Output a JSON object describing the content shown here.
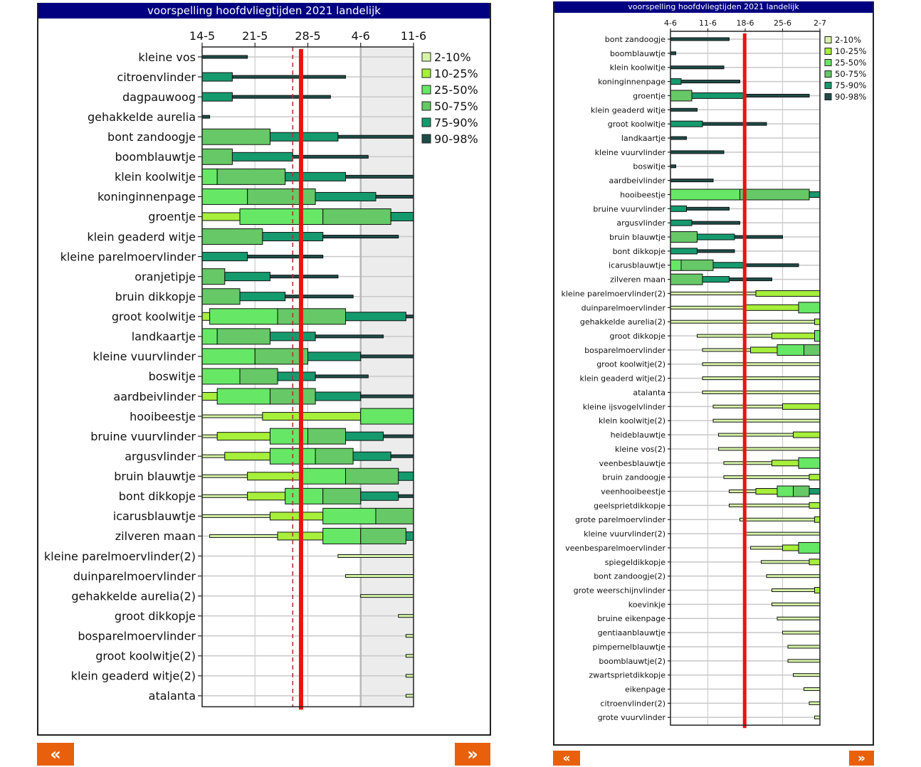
{
  "bands": [
    {
      "label": "2-10%",
      "color": "#d6f5a8"
    },
    {
      "label": "10-25%",
      "color": "#a6ef3a"
    },
    {
      "label": "25-50%",
      "color": "#66e866"
    },
    {
      "label": "50-75%",
      "color": "#66c866"
    },
    {
      "label": "75-90%",
      "color": "#159a6e"
    },
    {
      "label": "90-98%",
      "color": "#1e4d48"
    }
  ],
  "colors": {
    "title_bg": "#000080",
    "today_line": "#ee1111",
    "dashed_line": "#aa3333",
    "nav_button": "#e8600c",
    "shade": "#ececec"
  },
  "nav": {
    "prev_label": "«",
    "next_label": "»"
  },
  "chart_data": [
    {
      "type": "range-bar",
      "title": "voorspelling hoofdvliegtijden 2021 landelijk",
      "xlabel": "",
      "ylabel": "",
      "x_ticks": [
        "14-5",
        "21-5",
        "28-5",
        "4-6",
        "11-6"
      ],
      "x_range_days": [
        0,
        28
      ],
      "tick_step_days": 7,
      "today_day": 13.1,
      "dashed_day": 12.0,
      "shade_from_day": 21,
      "legend": "top-right",
      "grid": true,
      "rows": [
        {
          "name": "kleine vos",
          "bounds": [
            0,
            0,
            0,
            0,
            0,
            0,
            6
          ]
        },
        {
          "name": "citroenvlinder",
          "bounds": [
            0,
            0,
            0,
            0,
            0,
            4,
            19
          ]
        },
        {
          "name": "dagpauwoog",
          "bounds": [
            0,
            0,
            0,
            0,
            0,
            4,
            17
          ]
        },
        {
          "name": "gehakkelde aurelia",
          "bounds": [
            0,
            0,
            0,
            0,
            0,
            0,
            1
          ]
        },
        {
          "name": "bont zandoogje",
          "bounds": [
            0,
            0,
            0,
            0,
            9,
            18,
            28
          ]
        },
        {
          "name": "boomblauwtje",
          "bounds": [
            0,
            0,
            0,
            0,
            4,
            12,
            22
          ]
        },
        {
          "name": "klein koolwitje",
          "bounds": [
            0,
            0,
            0,
            2,
            11,
            19,
            28
          ]
        },
        {
          "name": "koninginnenpage",
          "bounds": [
            0,
            0,
            0,
            6,
            15,
            23,
            28
          ]
        },
        {
          "name": "groentje",
          "bounds": [
            0,
            0,
            5,
            16,
            25,
            28,
            28
          ]
        },
        {
          "name": "klein geaderd witje",
          "bounds": [
            0,
            0,
            0,
            0,
            8,
            16,
            26
          ]
        },
        {
          "name": "kleine parelmoervlinder",
          "bounds": [
            0,
            0,
            0,
            0,
            0,
            6,
            16
          ]
        },
        {
          "name": "oranjetipje",
          "bounds": [
            0,
            0,
            0,
            0,
            3,
            9,
            18
          ]
        },
        {
          "name": "bruin dikkopje",
          "bounds": [
            0,
            0,
            0,
            0,
            5,
            11,
            20
          ]
        },
        {
          "name": "groot koolwitje",
          "bounds": [
            0,
            0,
            1,
            10,
            19,
            27,
            28
          ]
        },
        {
          "name": "landkaartje",
          "bounds": [
            0,
            0,
            0,
            2,
            9,
            15,
            24
          ]
        },
        {
          "name": "kleine vuurvlinder",
          "bounds": [
            0,
            0,
            0,
            7,
            14,
            21,
            28
          ]
        },
        {
          "name": "boswitje",
          "bounds": [
            0,
            0,
            0,
            5,
            10,
            15,
            22
          ]
        },
        {
          "name": "aardbeivlinder",
          "bounds": [
            0,
            0,
            2,
            9,
            15,
            21,
            28
          ]
        },
        {
          "name": "hooibeestje",
          "bounds": [
            0,
            8,
            21,
            28,
            28,
            28,
            28
          ]
        },
        {
          "name": "bruine vuurvlinder",
          "bounds": [
            0,
            2,
            9,
            14,
            19,
            24,
            28
          ]
        },
        {
          "name": "argusvlinder",
          "bounds": [
            0,
            3,
            9,
            15,
            20,
            25,
            28
          ]
        },
        {
          "name": "bruin blauwtje",
          "bounds": [
            0,
            6,
            13,
            19,
            26,
            28,
            28
          ]
        },
        {
          "name": "bont dikkopje",
          "bounds": [
            0,
            6,
            11,
            16,
            21,
            26,
            28
          ]
        },
        {
          "name": "icarusblauwtje",
          "bounds": [
            0,
            9,
            16,
            23,
            28,
            28,
            28
          ]
        },
        {
          "name": "zilveren maan",
          "bounds": [
            1,
            10,
            16,
            21,
            27,
            28,
            28
          ]
        },
        {
          "name": "kleine parelmoervlinder(2)",
          "bounds": [
            18,
            28,
            28,
            28,
            28,
            28,
            28
          ]
        },
        {
          "name": "duinparelmoervlinder",
          "bounds": [
            19,
            28,
            28,
            28,
            28,
            28,
            28
          ]
        },
        {
          "name": "gehakkelde aurelia(2)",
          "bounds": [
            21,
            28,
            28,
            28,
            28,
            28,
            28
          ]
        },
        {
          "name": "groot dikkopje",
          "bounds": [
            26,
            28,
            28,
            28,
            28,
            28,
            28
          ]
        },
        {
          "name": "bosparelmoervlinder",
          "bounds": [
            27,
            28,
            28,
            28,
            28,
            28,
            28
          ]
        },
        {
          "name": "groot koolwitje(2)",
          "bounds": [
            27,
            28,
            28,
            28,
            28,
            28,
            28
          ]
        },
        {
          "name": "klein geaderd witje(2)",
          "bounds": [
            27,
            28,
            28,
            28,
            28,
            28,
            28
          ]
        },
        {
          "name": "atalanta",
          "bounds": [
            27,
            28,
            28,
            28,
            28,
            28,
            28
          ]
        }
      ]
    },
    {
      "type": "range-bar",
      "title": "voorspelling hoofdvliegtijden 2021 landelijk",
      "xlabel": "",
      "ylabel": "",
      "x_ticks": [
        "4-6",
        "11-6",
        "18-6",
        "25-6",
        "2-7"
      ],
      "x_range_days": [
        0,
        28
      ],
      "tick_step_days": 7,
      "today_day": 13.9,
      "dashed_day": null,
      "shade_from_day": null,
      "legend": "top-right",
      "grid": true,
      "rows": [
        {
          "name": "bont zandoogje",
          "bounds": [
            0,
            0,
            0,
            0,
            0,
            0,
            11
          ]
        },
        {
          "name": "boomblauwtje",
          "bounds": [
            0,
            0,
            0,
            0,
            0,
            0,
            1
          ]
        },
        {
          "name": "klein koolwitje",
          "bounds": [
            0,
            0,
            0,
            0,
            0,
            0,
            10
          ]
        },
        {
          "name": "koninginnenpage",
          "bounds": [
            0,
            0,
            0,
            0,
            0,
            2,
            13
          ]
        },
        {
          "name": "groentje",
          "bounds": [
            0,
            0,
            0,
            0,
            4,
            14,
            26
          ]
        },
        {
          "name": "klein geaderd witje",
          "bounds": [
            0,
            0,
            0,
            0,
            0,
            0,
            5
          ]
        },
        {
          "name": "groot koolwitje",
          "bounds": [
            0,
            0,
            0,
            0,
            0,
            6,
            18
          ]
        },
        {
          "name": "landkaartje",
          "bounds": [
            0,
            0,
            0,
            0,
            0,
            0,
            3
          ]
        },
        {
          "name": "kleine vuurvlinder",
          "bounds": [
            0,
            0,
            0,
            0,
            0,
            0,
            10
          ]
        },
        {
          "name": "boswitje",
          "bounds": [
            0,
            0,
            0,
            0,
            0,
            0,
            1
          ]
        },
        {
          "name": "aardbeivlinder",
          "bounds": [
            0,
            0,
            0,
            0,
            0,
            0,
            8
          ]
        },
        {
          "name": "hooibeestje",
          "bounds": [
            0,
            0,
            0,
            13,
            26,
            28,
            28
          ]
        },
        {
          "name": "bruine vuurvlinder",
          "bounds": [
            0,
            0,
            0,
            0,
            0,
            3,
            11
          ]
        },
        {
          "name": "argusvlinder",
          "bounds": [
            0,
            0,
            0,
            0,
            0,
            4,
            13
          ]
        },
        {
          "name": "bruin blauwtje",
          "bounds": [
            0,
            0,
            0,
            0,
            5,
            12,
            21
          ]
        },
        {
          "name": "bont dikkopje",
          "bounds": [
            0,
            0,
            0,
            0,
            0,
            5,
            12
          ]
        },
        {
          "name": "icarusblauwtje",
          "bounds": [
            0,
            0,
            0,
            2,
            8,
            14,
            24
          ]
        },
        {
          "name": "zilveren maan",
          "bounds": [
            0,
            0,
            0,
            0,
            6,
            11,
            19
          ]
        },
        {
          "name": "kleine parelmoervlinder(2)",
          "bounds": [
            0,
            16,
            28,
            28,
            28,
            28,
            28
          ]
        },
        {
          "name": "duinparelmoervlinder",
          "bounds": [
            0,
            14,
            24,
            28,
            28,
            28,
            28
          ]
        },
        {
          "name": "gehakkelde aurelia(2)",
          "bounds": [
            0,
            27,
            28,
            28,
            28,
            28,
            28
          ]
        },
        {
          "name": "groot dikkopje",
          "bounds": [
            5,
            19,
            27,
            28,
            28,
            28,
            28
          ]
        },
        {
          "name": "bosparelmoervlinder",
          "bounds": [
            6,
            15,
            20,
            25,
            28,
            28,
            28
          ]
        },
        {
          "name": "groot koolwitje(2)",
          "bounds": [
            6,
            28,
            28,
            28,
            28,
            28,
            28
          ]
        },
        {
          "name": "klein geaderd witje(2)",
          "bounds": [
            6,
            28,
            28,
            28,
            28,
            28,
            28
          ]
        },
        {
          "name": "atalanta",
          "bounds": [
            6,
            28,
            28,
            28,
            28,
            28,
            28
          ]
        },
        {
          "name": "kleine ijsvogelvlinder",
          "bounds": [
            8,
            21,
            28,
            28,
            28,
            28,
            28
          ]
        },
        {
          "name": "klein koolwitje(2)",
          "bounds": [
            8,
            28,
            28,
            28,
            28,
            28,
            28
          ]
        },
        {
          "name": "heideblauwtje",
          "bounds": [
            9,
            23,
            28,
            28,
            28,
            28,
            28
          ]
        },
        {
          "name": "kleine vos(2)",
          "bounds": [
            9,
            28,
            28,
            28,
            28,
            28,
            28
          ]
        },
        {
          "name": "veenbesblauwtje",
          "bounds": [
            10,
            19,
            24,
            28,
            28,
            28,
            28
          ]
        },
        {
          "name": "bruin zandoogje",
          "bounds": [
            10,
            26,
            28,
            28,
            28,
            28,
            28
          ]
        },
        {
          "name": "veenhooibeestje",
          "bounds": [
            11,
            16,
            20,
            23,
            26,
            28,
            28
          ]
        },
        {
          "name": "geelsprietdikkopje",
          "bounds": [
            11,
            26,
            28,
            28,
            28,
            28,
            28
          ]
        },
        {
          "name": "grote parelmoervlinder",
          "bounds": [
            13,
            27,
            28,
            28,
            28,
            28,
            28
          ]
        },
        {
          "name": "kleine vuurvlinder(2)",
          "bounds": [
            14,
            28,
            28,
            28,
            28,
            28,
            28
          ]
        },
        {
          "name": "veenbesparelmoervlinder",
          "bounds": [
            15,
            21,
            24,
            28,
            28,
            28,
            28
          ]
        },
        {
          "name": "spiegeldikkopje",
          "bounds": [
            17,
            26,
            28,
            28,
            28,
            28,
            28
          ]
        },
        {
          "name": "bont zandoogje(2)",
          "bounds": [
            18,
            28,
            28,
            28,
            28,
            28,
            28
          ]
        },
        {
          "name": "grote weerschijnvlinder",
          "bounds": [
            19,
            27,
            28,
            28,
            28,
            28,
            28
          ]
        },
        {
          "name": "koevinkje",
          "bounds": [
            19,
            28,
            28,
            28,
            28,
            28,
            28
          ]
        },
        {
          "name": "bruine eikenpage",
          "bounds": [
            20,
            28,
            28,
            28,
            28,
            28,
            28
          ]
        },
        {
          "name": "gentiaanblauwtje",
          "bounds": [
            21,
            28,
            28,
            28,
            28,
            28,
            28
          ]
        },
        {
          "name": "pimpernelblauwtje",
          "bounds": [
            22,
            28,
            28,
            28,
            28,
            28,
            28
          ]
        },
        {
          "name": "boomblauwtje(2)",
          "bounds": [
            22,
            28,
            28,
            28,
            28,
            28,
            28
          ]
        },
        {
          "name": "zwartsprietdikkopje",
          "bounds": [
            23,
            28,
            28,
            28,
            28,
            28,
            28
          ]
        },
        {
          "name": "eikenpage",
          "bounds": [
            25,
            28,
            28,
            28,
            28,
            28,
            28
          ]
        },
        {
          "name": "citroenvlinder(2)",
          "bounds": [
            26,
            28,
            28,
            28,
            28,
            28,
            28
          ]
        },
        {
          "name": "grote vuurvlinder",
          "bounds": [
            27,
            28,
            28,
            28,
            28,
            28,
            28
          ]
        }
      ]
    }
  ]
}
